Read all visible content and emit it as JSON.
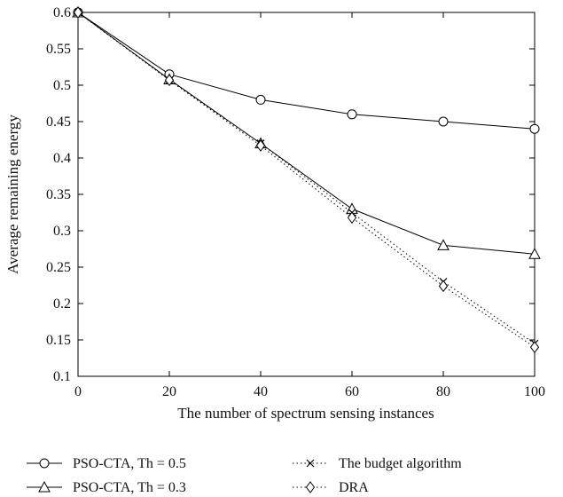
{
  "chart_data": {
    "type": "line",
    "title": "",
    "xlabel": "The number of spectrum sensing instances",
    "ylabel": "Average remaining energy",
    "xlim": [
      0,
      100
    ],
    "ylim": [
      0.1,
      0.6
    ],
    "xticks": [
      0,
      20,
      40,
      60,
      80,
      100
    ],
    "yticks": [
      0.1,
      0.15,
      0.2,
      0.25,
      0.3,
      0.35,
      0.4,
      0.45,
      0.5,
      0.55,
      0.6
    ],
    "xtick_labels": [
      "0",
      "20",
      "40",
      "60",
      "80",
      "100"
    ],
    "ytick_labels": [
      "0.1",
      "0.15",
      "0.2",
      "0.25",
      "0.3",
      "0.35",
      "0.4",
      "0.45",
      "0.5",
      "0.55",
      "0.6"
    ],
    "grid": false,
    "legend_position": "bottom",
    "x": [
      0,
      20,
      40,
      60,
      80,
      100
    ],
    "series": [
      {
        "name": "PSO-CTA, Th = 0.5",
        "marker": "circle",
        "line": "solid",
        "values": [
          0.6,
          0.515,
          0.48,
          0.46,
          0.45,
          0.44
        ]
      },
      {
        "name": "PSO-CTA, Th = 0.3",
        "marker": "triangle",
        "line": "solid",
        "values": [
          0.6,
          0.508,
          0.42,
          0.33,
          0.28,
          0.268
        ]
      },
      {
        "name": "The budget algorithm",
        "marker": "x",
        "line": "dotted",
        "values": [
          0.6,
          0.507,
          0.42,
          0.325,
          0.23,
          0.145
        ]
      },
      {
        "name": "DRA",
        "marker": "diamond",
        "line": "dotted",
        "values": [
          0.6,
          0.507,
          0.417,
          0.318,
          0.224,
          0.14
        ]
      }
    ]
  }
}
